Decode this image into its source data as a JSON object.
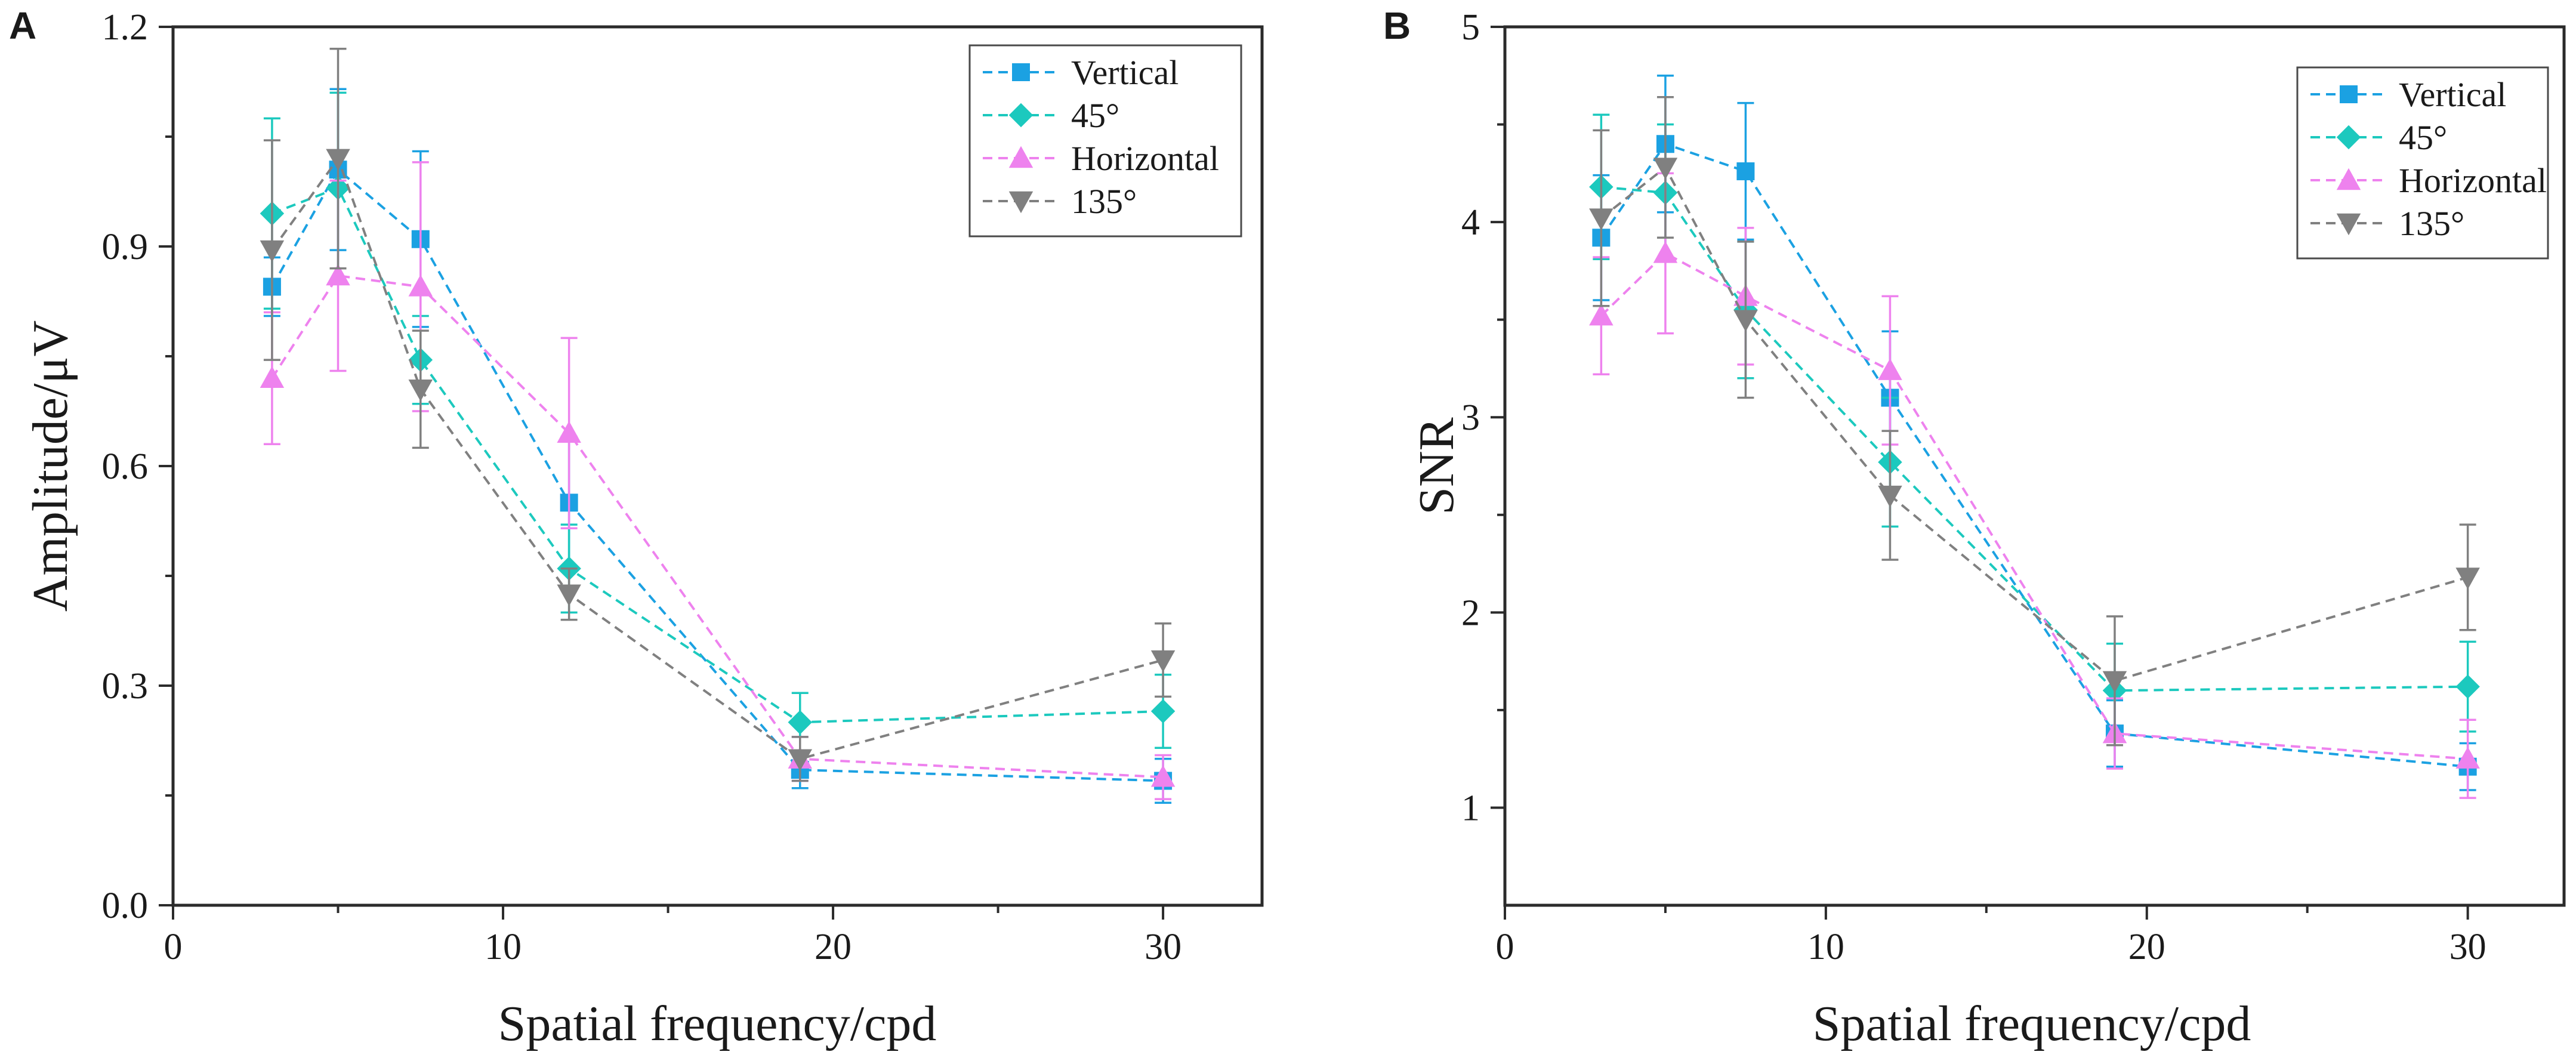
{
  "chart_data": [
    {
      "panel": "A",
      "type": "line",
      "xlabel": "Spatial frequency/cpd",
      "ylabel": "Amplitude/μV",
      "xlim": [
        0,
        33
      ],
      "ylim": [
        0,
        1.2
      ],
      "xticks": [
        0,
        10,
        20,
        30
      ],
      "yticks": [
        0.0,
        0.3,
        0.6,
        0.9,
        1.2
      ],
      "ytick_labels": [
        "0.0",
        "0.3",
        "0.6",
        "0.9",
        "1.2"
      ],
      "legend_position": "top-right",
      "series": [
        {
          "name": "Vertical",
          "marker": "square",
          "color": "#1ba1e2",
          "x": [
            3,
            5,
            7.5,
            12,
            19,
            30
          ],
          "y": [
            0.845,
            1.005,
            0.91,
            0.55,
            0.185,
            0.17
          ],
          "err": [
            0.04,
            0.11,
            0.12,
            0.09,
            0.025,
            0.03
          ]
        },
        {
          "name": "45°",
          "marker": "diamond",
          "color": "#1cc9be",
          "x": [
            3,
            5,
            7.5,
            12,
            19,
            30
          ],
          "y": [
            0.945,
            0.98,
            0.745,
            0.46,
            0.25,
            0.265
          ],
          "err": [
            0.13,
            0.13,
            0.06,
            0.06,
            0.04,
            0.05
          ]
        },
        {
          "name": "Horizontal",
          "marker": "triangle-up",
          "color": "#ee82ee",
          "x": [
            3,
            5,
            7.5,
            12,
            19,
            30
          ],
          "y": [
            0.72,
            0.86,
            0.845,
            0.645,
            0.2,
            0.175
          ],
          "err": [
            0.09,
            0.13,
            0.17,
            0.13,
            0.03,
            0.03
          ]
        },
        {
          "name": "135°",
          "marker": "triangle-down",
          "color": "#808080",
          "x": [
            3,
            5,
            7.5,
            12,
            19,
            30
          ],
          "y": [
            0.895,
            1.02,
            0.705,
            0.425,
            0.2,
            0.335
          ],
          "err": [
            0.15,
            0.15,
            0.08,
            0.035,
            0.03,
            0.05
          ]
        }
      ]
    },
    {
      "panel": "B",
      "type": "line",
      "xlabel": "Spatial frequency/cpd",
      "ylabel": "SNR",
      "xlim": [
        0,
        33
      ],
      "ylim": [
        0.5,
        5
      ],
      "xticks": [
        0,
        10,
        20,
        30
      ],
      "yticks": [
        1,
        2,
        3,
        4,
        5
      ],
      "ytick_labels": [
        "1",
        "2",
        "3",
        "4",
        "5"
      ],
      "legend_position": "top-right",
      "series": [
        {
          "name": "Vertical",
          "marker": "square",
          "color": "#1ba1e2",
          "x": [
            3,
            5,
            7.5,
            12,
            19,
            30
          ],
          "y": [
            3.92,
            4.4,
            4.26,
            3.1,
            1.38,
            1.21
          ],
          "err": [
            0.32,
            0.35,
            0.35,
            0.34,
            0.17,
            0.12
          ]
        },
        {
          "name": "45°",
          "marker": "diamond",
          "color": "#1cc9be",
          "x": [
            3,
            5,
            7.5,
            12,
            19,
            30
          ],
          "y": [
            4.18,
            4.15,
            3.55,
            2.77,
            1.6,
            1.62
          ],
          "err": [
            0.37,
            0.35,
            0.35,
            0.33,
            0.24,
            0.23
          ]
        },
        {
          "name": "Horizontal",
          "marker": "triangle-up",
          "color": "#ee82ee",
          "x": [
            3,
            5,
            7.5,
            12,
            19,
            30
          ],
          "y": [
            3.52,
            3.84,
            3.62,
            3.24,
            1.38,
            1.25
          ],
          "err": [
            0.3,
            0.41,
            0.35,
            0.38,
            0.18,
            0.2
          ]
        },
        {
          "name": "135°",
          "marker": "triangle-down",
          "color": "#808080",
          "x": [
            3,
            5,
            7.5,
            12,
            19,
            30
          ],
          "y": [
            4.02,
            4.28,
            3.5,
            2.6,
            1.65,
            2.18
          ],
          "err": [
            0.45,
            0.36,
            0.4,
            0.33,
            0.33,
            0.27
          ]
        }
      ]
    }
  ]
}
